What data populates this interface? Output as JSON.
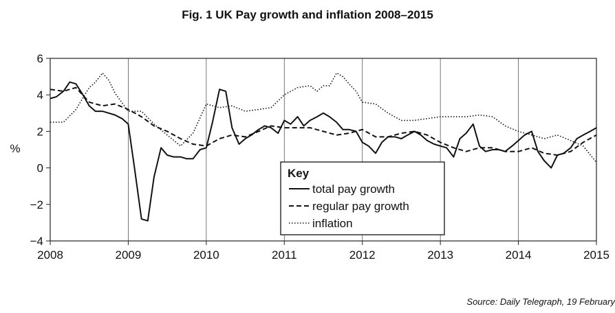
{
  "chart_data": {
    "type": "line",
    "title": "Fig. 1  UK Pay growth and inflation 2008–2015",
    "ylabel": "%",
    "xlabel": "",
    "xlim": [
      2008,
      2015
    ],
    "ylim": [
      -4,
      6
    ],
    "x_ticks": [
      "2008",
      "2009",
      "2010",
      "2011",
      "2012",
      "2013",
      "2014",
      "2015"
    ],
    "y_ticks": [
      "−4",
      "−2",
      "0",
      "2",
      "4",
      "6"
    ],
    "grid": "vertical lines at years",
    "legend": {
      "title": "Key",
      "position": "center-bottom",
      "entries": [
        "total pay growth",
        "regular pay growth",
        "inflation"
      ]
    },
    "series": [
      {
        "name": "total pay growth",
        "style": "solid",
        "x": [
          2008.0,
          2008.08,
          2008.17,
          2008.25,
          2008.33,
          2008.42,
          2008.5,
          2008.58,
          2008.67,
          2008.75,
          2008.83,
          2008.92,
          2009.0,
          2009.08,
          2009.17,
          2009.25,
          2009.33,
          2009.42,
          2009.5,
          2009.58,
          2009.67,
          2009.75,
          2009.83,
          2009.92,
          2010.0,
          2010.08,
          2010.17,
          2010.25,
          2010.33,
          2010.42,
          2010.5,
          2010.58,
          2010.67,
          2010.75,
          2010.83,
          2010.92,
          2011.0,
          2011.08,
          2011.17,
          2011.25,
          2011.33,
          2011.42,
          2011.5,
          2011.58,
          2011.67,
          2011.75,
          2011.83,
          2011.92,
          2012.0,
          2012.08,
          2012.17,
          2012.25,
          2012.33,
          2012.42,
          2012.5,
          2012.58,
          2012.67,
          2012.75,
          2012.83,
          2012.92,
          2013.0,
          2013.08,
          2013.17,
          2013.25,
          2013.33,
          2013.42,
          2013.5,
          2013.58,
          2013.67,
          2013.75,
          2013.83,
          2013.92,
          2014.0,
          2014.08,
          2014.17,
          2014.25,
          2014.33,
          2014.42,
          2014.5,
          2014.58,
          2014.67,
          2014.75,
          2014.83,
          2014.92,
          2015.0
        ],
        "values": [
          3.8,
          3.9,
          4.2,
          4.7,
          4.6,
          4.0,
          3.4,
          3.1,
          3.1,
          3.0,
          2.9,
          2.7,
          2.4,
          0.0,
          -2.8,
          -2.9,
          -0.5,
          1.1,
          0.7,
          0.6,
          0.6,
          0.5,
          0.5,
          1.0,
          1.1,
          2.5,
          4.3,
          4.2,
          2.2,
          1.3,
          1.6,
          1.8,
          2.1,
          2.3,
          2.2,
          1.9,
          2.6,
          2.4,
          2.8,
          2.3,
          2.6,
          2.8,
          3.0,
          2.8,
          2.5,
          2.1,
          2.1,
          2.0,
          1.4,
          1.2,
          0.8,
          1.4,
          1.7,
          1.7,
          1.6,
          1.8,
          2.0,
          1.8,
          1.5,
          1.3,
          1.2,
          1.1,
          0.6,
          1.6,
          1.9,
          2.4,
          1.2,
          0.9,
          1.0,
          1.0,
          0.9,
          1.2,
          1.5,
          1.8,
          2.0,
          0.9,
          0.4,
          0.0,
          0.7,
          0.8,
          1.1,
          1.6,
          1.8,
          2.0,
          2.2
        ]
      },
      {
        "name": "regular pay growth",
        "style": "dashed",
        "x": [
          2008.0,
          2008.17,
          2008.33,
          2008.5,
          2008.67,
          2008.83,
          2009.0,
          2009.17,
          2009.33,
          2009.5,
          2009.67,
          2009.83,
          2010.0,
          2010.17,
          2010.33,
          2010.5,
          2010.67,
          2010.83,
          2011.0,
          2011.17,
          2011.33,
          2011.5,
          2011.67,
          2011.83,
          2012.0,
          2012.17,
          2012.33,
          2012.5,
          2012.67,
          2012.83,
          2013.0,
          2013.17,
          2013.33,
          2013.5,
          2013.67,
          2013.83,
          2014.0,
          2014.17,
          2014.33,
          2014.5,
          2014.67,
          2014.83,
          2015.0
        ],
        "values": [
          4.3,
          4.2,
          4.4,
          3.6,
          3.4,
          3.5,
          3.2,
          2.8,
          2.3,
          2.0,
          1.6,
          1.3,
          1.2,
          1.6,
          1.8,
          1.7,
          2.0,
          2.3,
          2.2,
          2.2,
          2.2,
          2.0,
          1.8,
          1.9,
          2.1,
          1.7,
          1.7,
          1.9,
          2.0,
          1.8,
          1.4,
          1.1,
          0.9,
          1.1,
          1.1,
          0.9,
          0.9,
          1.1,
          0.8,
          0.7,
          0.9,
          1.4,
          1.8
        ]
      },
      {
        "name": "inflation",
        "style": "dotted",
        "x": [
          2008.0,
          2008.17,
          2008.33,
          2008.5,
          2008.58,
          2008.67,
          2008.75,
          2008.83,
          2009.0,
          2009.17,
          2009.33,
          2009.5,
          2009.67,
          2009.83,
          2010.0,
          2010.17,
          2010.33,
          2010.5,
          2010.67,
          2010.83,
          2011.0,
          2011.17,
          2011.33,
          2011.42,
          2011.5,
          2011.58,
          2011.67,
          2011.75,
          2011.83,
          2011.92,
          2012.0,
          2012.17,
          2012.33,
          2012.5,
          2012.67,
          2012.83,
          2013.0,
          2013.17,
          2013.33,
          2013.5,
          2013.67,
          2013.83,
          2014.0,
          2014.17,
          2014.33,
          2014.5,
          2014.67,
          2014.83,
          2015.0
        ],
        "values": [
          2.5,
          2.5,
          3.2,
          4.4,
          4.7,
          5.2,
          4.8,
          4.1,
          3.1,
          3.1,
          2.4,
          1.8,
          1.2,
          1.9,
          3.5,
          3.3,
          3.4,
          3.1,
          3.2,
          3.3,
          4.0,
          4.4,
          4.5,
          4.2,
          4.5,
          4.5,
          5.2,
          5.0,
          4.6,
          4.2,
          3.6,
          3.5,
          3.0,
          2.6,
          2.6,
          2.7,
          2.8,
          2.8,
          2.8,
          2.9,
          2.8,
          2.3,
          2.0,
          1.8,
          1.6,
          1.8,
          1.5,
          1.2,
          0.3
        ]
      }
    ]
  },
  "source": "Source: Daily Telegraph, 19 February"
}
